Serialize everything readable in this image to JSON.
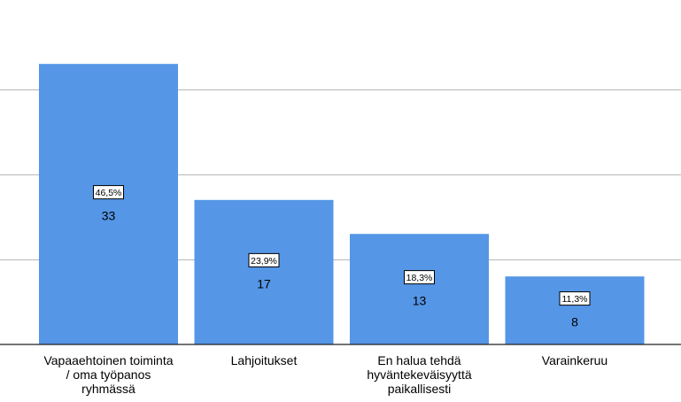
{
  "chart_data": {
    "type": "bar",
    "categories": [
      "Vapaaehtoinen toiminta\n/ oma työpanos\nryhmässä",
      "Lahjoitukset",
      "En halua tehdä\nhyväntekeväisyyttä\npaikallisesti",
      "Varainkeruu"
    ],
    "values": [
      33,
      17,
      13,
      8
    ],
    "percent_labels": [
      "46,5%",
      "23,9%",
      "18,3%",
      "11,3%"
    ],
    "count_labels": [
      "33",
      "17",
      "13",
      "8"
    ],
    "ylim": [
      0,
      40
    ],
    "grid_values": [
      10,
      20,
      30
    ],
    "grid": true,
    "title": "",
    "xlabel": "",
    "ylabel": "",
    "bar_color": "#5596e6"
  }
}
